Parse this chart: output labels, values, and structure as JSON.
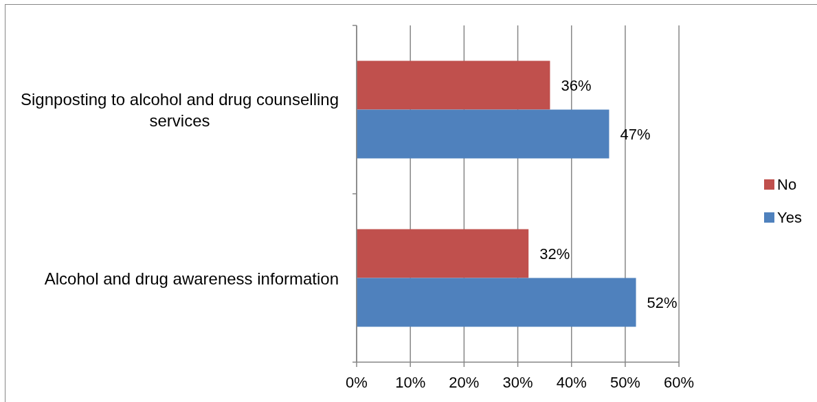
{
  "chart_data": {
    "type": "bar",
    "orientation": "horizontal",
    "categories": [
      "Signposting to alcohol and drug counselling services",
      "Alcohol and drug awareness information"
    ],
    "series": [
      {
        "name": "No",
        "color": "#c0504d",
        "values": [
          36,
          32
        ],
        "value_labels": [
          "36%",
          "32%"
        ]
      },
      {
        "name": "Yes",
        "color": "#4f81bd",
        "values": [
          47,
          52
        ],
        "value_labels": [
          "47%",
          "52%"
        ]
      }
    ],
    "xlim": [
      0,
      60
    ],
    "xticks": [
      {
        "value": 0,
        "label": "0%"
      },
      {
        "value": 10,
        "label": "10%"
      },
      {
        "value": 20,
        "label": "20%"
      },
      {
        "value": 30,
        "label": "30%"
      },
      {
        "value": 40,
        "label": "40%"
      },
      {
        "value": 50,
        "label": "50%"
      },
      {
        "value": 60,
        "label": "60%"
      }
    ],
    "grid": "x",
    "legend": "right"
  }
}
